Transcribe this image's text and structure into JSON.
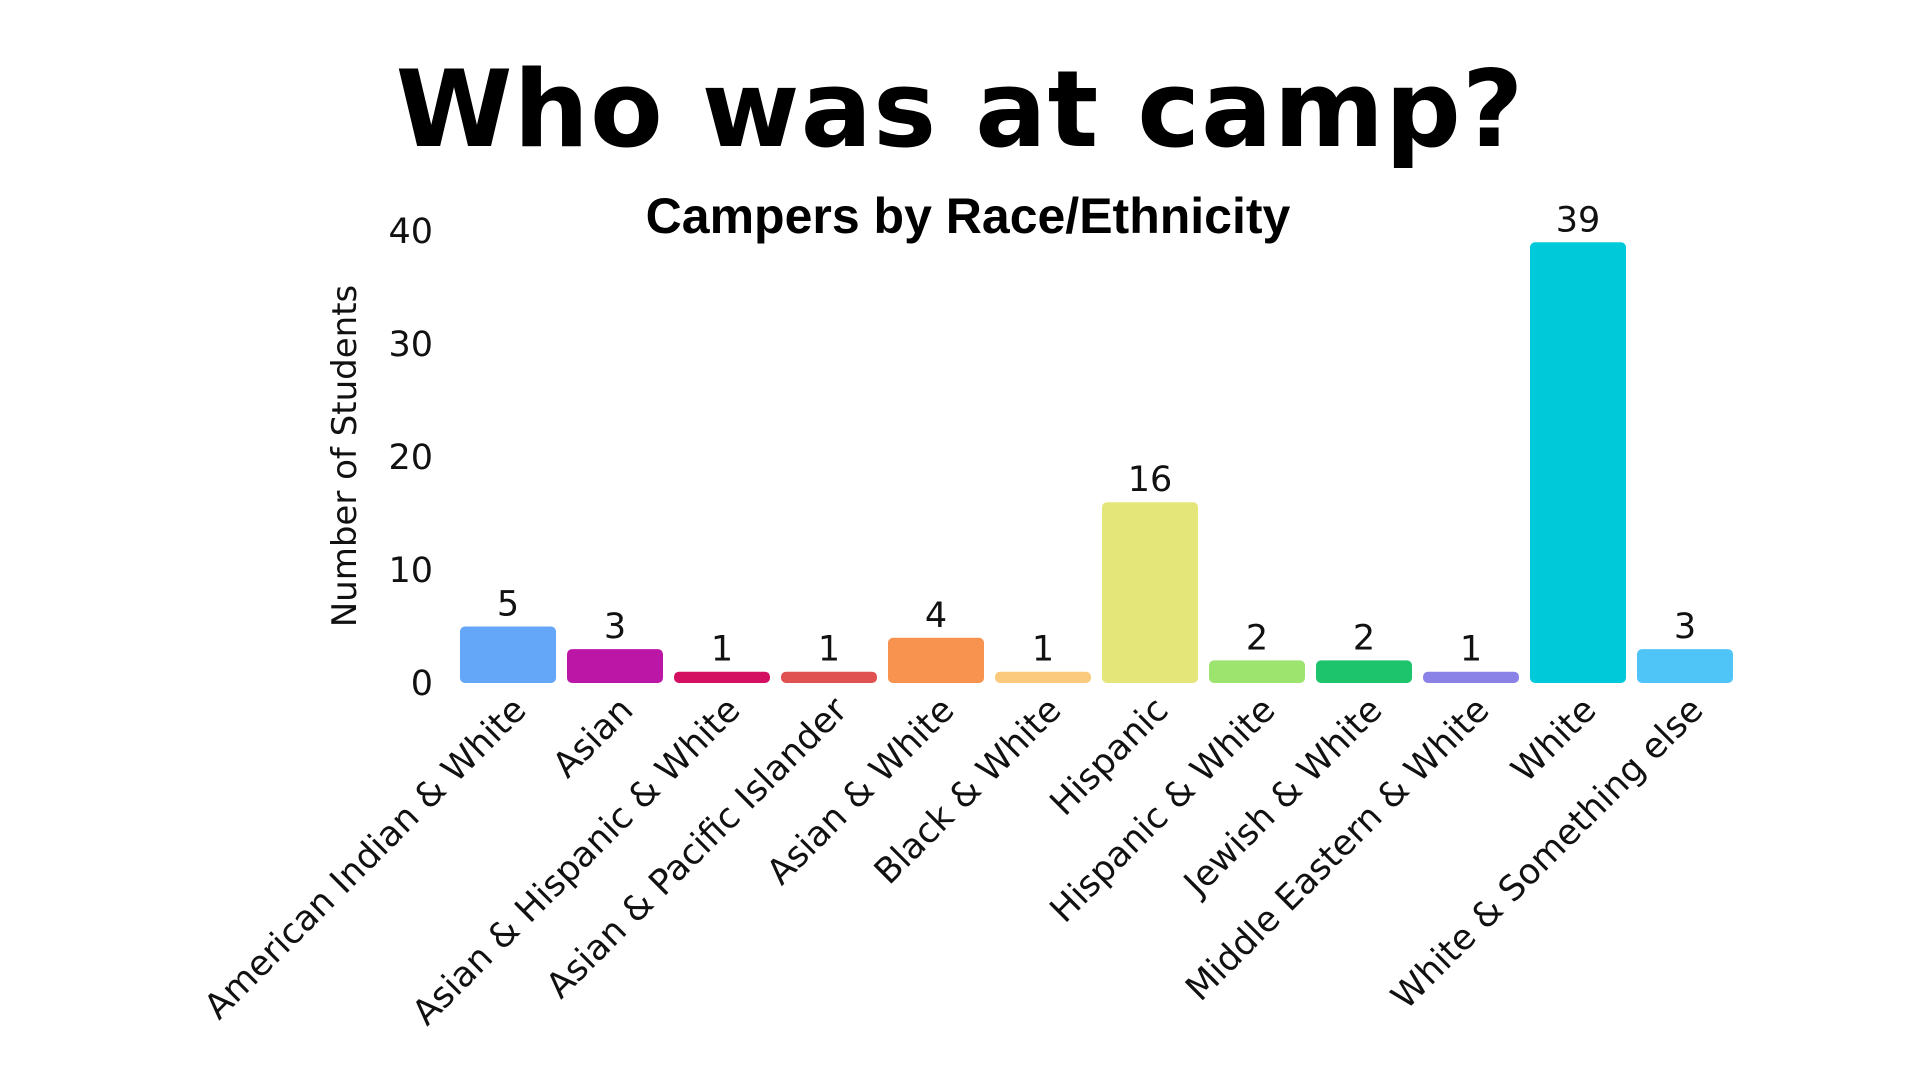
{
  "page": {
    "title": "Who was at camp?"
  },
  "chart_data": {
    "type": "bar",
    "title": "Campers by Race/Ethnicity",
    "xlabel": "",
    "ylabel": "Number of Students",
    "ylim": [
      0,
      40
    ],
    "yticks": [
      0,
      10,
      20,
      30,
      40
    ],
    "grid": false,
    "categories": [
      "American Indian & White",
      "Asian",
      "Asian & Hispanic & White",
      "Asian & Pacific Islander",
      "Asian & White",
      "Black & White",
      "Hispanic",
      "Hispanic & White",
      "Jewish & White",
      "Middle Eastern & White",
      "White",
      "White & Something else"
    ],
    "values": [
      5,
      3,
      1,
      1,
      4,
      1,
      16,
      2,
      2,
      1,
      39,
      3
    ],
    "colors": [
      "#64a6f7",
      "#bb16a6",
      "#d40f62",
      "#e05151",
      "#f7934f",
      "#fcca7c",
      "#e4e67a",
      "#9de46f",
      "#1dc46b",
      "#8a82e6",
      "#00c9d9",
      "#4fc4f7"
    ]
  }
}
